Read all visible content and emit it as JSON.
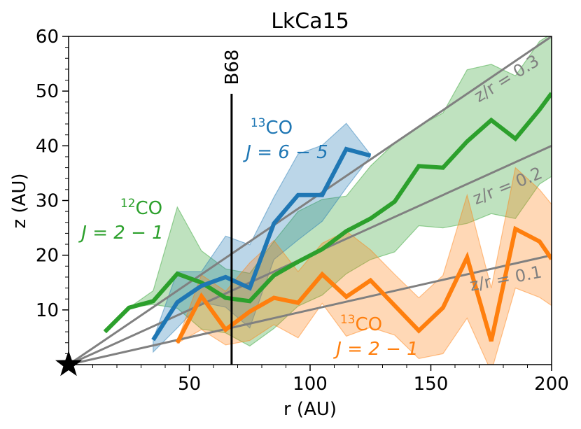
{
  "chart_data": {
    "type": "line",
    "title": "LkCa15",
    "xlabel": "r (AU)",
    "ylabel": "z (AU)",
    "xlim": [
      0,
      200
    ],
    "ylim": [
      0,
      60
    ],
    "xticks": [
      50,
      100,
      150,
      200
    ],
    "yticks": [
      10,
      20,
      30,
      40,
      50,
      60
    ],
    "x_tick_labels": [
      "50",
      "100",
      "150",
      "200"
    ],
    "y_tick_labels": [
      "10",
      "20",
      "30",
      "40",
      "50",
      "60"
    ],
    "grid": false,
    "colors": {
      "co12_21": "#2ca02c",
      "co13_65": "#1f77b4",
      "co13_21": "#ff7f0e",
      "zr_lines": "#808080"
    },
    "ratio_lines": [
      {
        "slope": 0.1,
        "label": "z/r = 0.1"
      },
      {
        "slope": 0.2,
        "label": "z/r = 0.2"
      },
      {
        "slope": 0.3,
        "label": "z/r = 0.3"
      }
    ],
    "reference_line": {
      "x": 67.5,
      "label": "B68"
    },
    "star": {
      "x": 0,
      "y": 0,
      "name": "star"
    },
    "series": [
      {
        "key": "co12_21",
        "name": "12CO J=2-1",
        "label_super": "12",
        "label_molecule": "CO",
        "label_transition": "J = 2 − 1",
        "x": [
          15,
          25,
          35,
          45,
          55,
          65,
          75,
          85,
          95,
          105,
          115,
          125,
          135,
          145,
          155,
          165,
          175,
          185,
          195,
          200
        ],
        "y": [
          6.0,
          10.4,
          11.6,
          16.6,
          15.0,
          12.2,
          11.6,
          16.3,
          18.8,
          21.1,
          24.4,
          26.7,
          29.8,
          36.3,
          36.0,
          40.8,
          44.7,
          41.3,
          46.6,
          49.6
        ],
        "upper": [
          null,
          10.4,
          13.5,
          28.8,
          20.8,
          17.5,
          16.7,
          22.5,
          28.0,
          30.2,
          30.8,
          36.3,
          40.5,
          43.6,
          46.0,
          53.9,
          54.9,
          52.8,
          59.1,
          60.5
        ],
        "lower": [
          null,
          10.4,
          11.0,
          10.3,
          6.5,
          5.8,
          3.4,
          6.6,
          10.7,
          12.7,
          16.6,
          19.2,
          20.6,
          25.4,
          25.0,
          25.8,
          27.6,
          26.7,
          33.0,
          34.4
        ]
      },
      {
        "key": "co13_65",
        "name": "13CO J=6-5",
        "label_super": "13",
        "label_molecule": "CO",
        "label_transition": "J = 6 − 5",
        "x": [
          35,
          45,
          55,
          65,
          75,
          85,
          95,
          105,
          115,
          125
        ],
        "y": [
          4.5,
          11.4,
          14.4,
          16.0,
          14.0,
          25.8,
          31.0,
          31.0,
          39.4,
          38.2
        ],
        "upper": [
          4.6,
          17.0,
          17.0,
          23.5,
          21.9,
          30.6,
          38.5,
          40.1,
          44.1,
          38.4
        ],
        "lower": [
          2.3,
          6.7,
          11.4,
          10.5,
          6.7,
          19.2,
          22.8,
          26.2,
          32.3,
          38.1
        ]
      },
      {
        "key": "co13_21",
        "name": "13CO J=2-1",
        "label_super": "13",
        "label_molecule": "CO",
        "label_transition": "J = 2 − 1",
        "x": [
          45,
          55,
          65,
          75,
          85,
          95,
          105,
          115,
          125,
          135,
          145,
          155,
          165,
          175,
          185,
          195,
          200
        ],
        "y": [
          4.0,
          12.5,
          6.4,
          9.7,
          12.2,
          11.3,
          16.5,
          12.4,
          15.4,
          10.8,
          6.2,
          10.4,
          19.6,
          4.3,
          24.8,
          22.5,
          19.3
        ],
        "upper": [
          4.3,
          16.4,
          13.4,
          18.6,
          22.7,
          17.0,
          22.2,
          24.4,
          21.0,
          16.5,
          12.2,
          16.3,
          31.0,
          14.0,
          36.0,
          32.0,
          29.3
        ],
        "lower": [
          3.9,
          6.4,
          3.6,
          4.4,
          7.3,
          4.9,
          11.2,
          5.2,
          6.8,
          5.4,
          1.1,
          2.0,
          8.5,
          -1.3,
          14.0,
          12.3,
          10.8
        ]
      }
    ]
  }
}
